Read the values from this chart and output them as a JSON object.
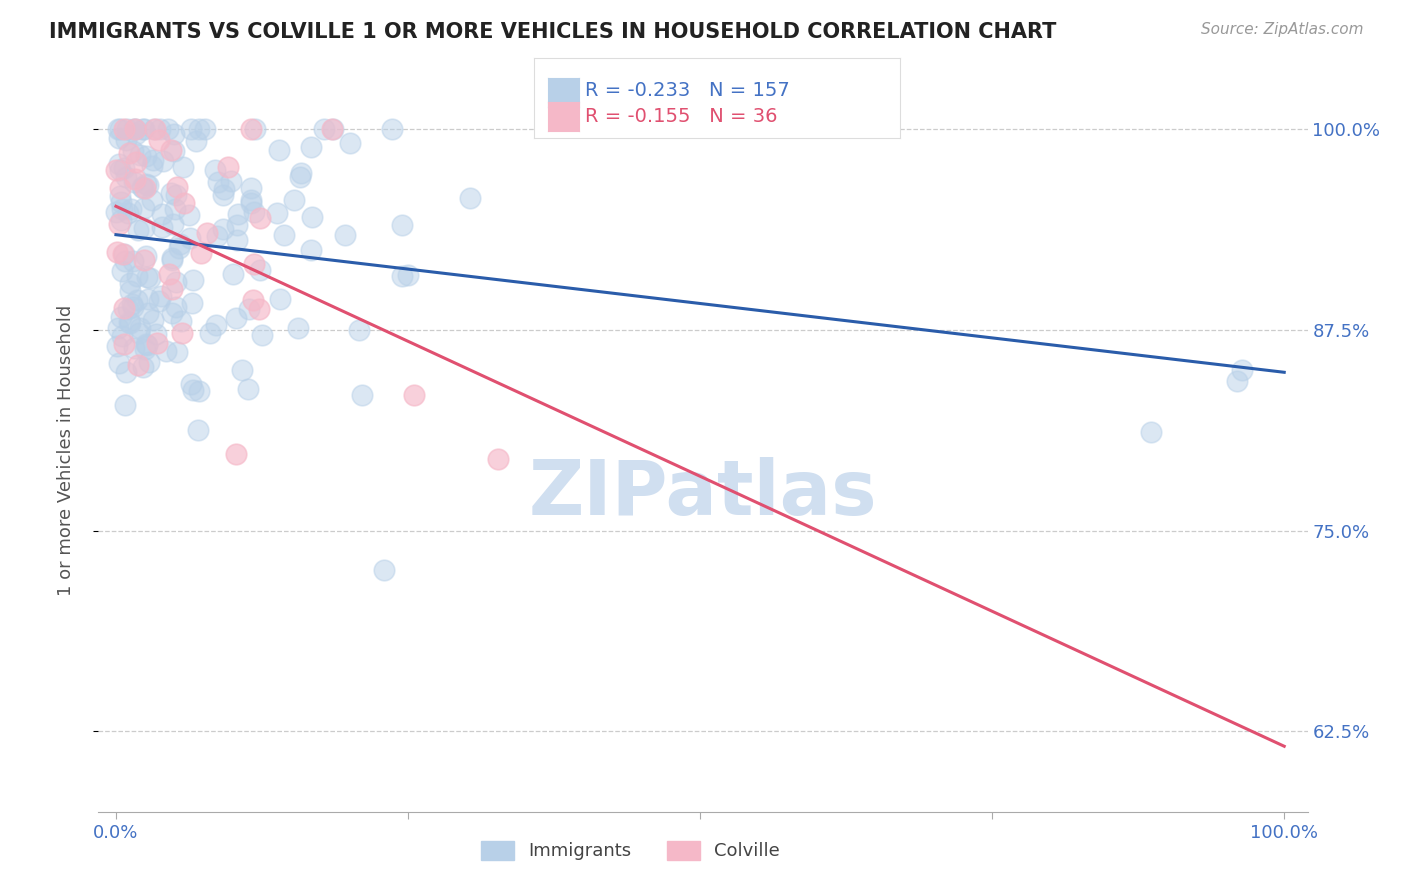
{
  "title": "IMMIGRANTS VS COLVILLE 1 OR MORE VEHICLES IN HOUSEHOLD CORRELATION CHART",
  "source": "Source: ZipAtlas.com",
  "ylabel": "1 or more Vehicles in Household",
  "legend_r_blue": "-0.233",
  "legend_n_blue": "157",
  "legend_r_pink": "-0.155",
  "legend_n_pink": "36",
  "blue_scatter_color": "#b8d0e8",
  "pink_scatter_color": "#f5b8c8",
  "line_blue_color": "#2a5caa",
  "line_pink_color": "#e05070",
  "tick_color": "#4472c4",
  "ylabel_color": "#555555",
  "title_color": "#222222",
  "source_color": "#999999",
  "watermark_color": "#d0dff0",
  "grid_color": "#cccccc",
  "bg_color": "#ffffff"
}
